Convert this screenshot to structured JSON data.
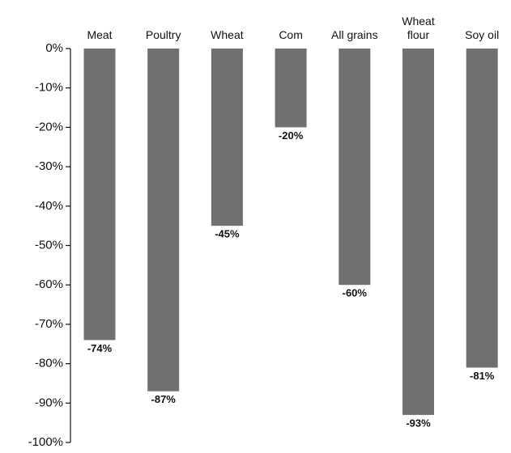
{
  "chart_data": {
    "type": "bar",
    "categories": [
      "Meat",
      "Poultry",
      "Wheat",
      "Com",
      "All grains",
      "Wheat flour",
      "Soy oil"
    ],
    "values": [
      -74,
      -87,
      -45,
      -20,
      -60,
      -93,
      -81
    ],
    "value_labels": [
      "-74%",
      "-87%",
      "-45%",
      "-20%",
      "-60%",
      "-93%",
      "-81%"
    ],
    "color": "#707070",
    "ylim": [
      -100,
      0
    ],
    "yticks": [
      {
        "value": 0,
        "label": "0%"
      },
      {
        "value": -10,
        "label": "-10%"
      },
      {
        "value": -20,
        "label": "-20%"
      },
      {
        "value": -30,
        "label": "-30%"
      },
      {
        "value": -40,
        "label": "-40%"
      },
      {
        "value": -50,
        "label": "-50%"
      },
      {
        "value": -60,
        "label": "-60%"
      },
      {
        "value": -70,
        "label": "-70%"
      },
      {
        "value": -80,
        "label": "-80%"
      },
      {
        "value": -90,
        "label": "-90%"
      },
      {
        "value": -100,
        "label": "-100%"
      }
    ],
    "grid": false
  }
}
